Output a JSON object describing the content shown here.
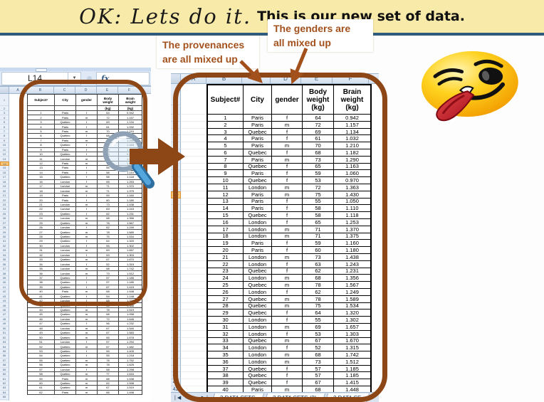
{
  "title": {
    "handwritten": "OK: Lets do it.",
    "typed": "This is our new set of data."
  },
  "callouts": {
    "provenances": [
      "The provenances",
      "are all mixed up"
    ],
    "genders": [
      "The genders are",
      "all mixed up"
    ]
  },
  "colors": {
    "title_band": "#F8EAA9",
    "divider_line": "#2E5B7D",
    "accent_brown": "#8D4716",
    "callout_text": "#A3511C",
    "row_highlight": "#FAC572",
    "header_strip": "#DCE6F1",
    "tab_bar": "#D9E2EF"
  },
  "excel": {
    "name_box": "L14",
    "fx_label": "fx",
    "selected_sheet_row": 14,
    "columns": [
      "A",
      "B",
      "C",
      "D",
      "E",
      "F"
    ],
    "headers": {
      "subject": "Subject#",
      "city": "City",
      "gender": "gender",
      "body": [
        "Body",
        "weight",
        "(kg)"
      ],
      "brain": [
        "Brain",
        "weight",
        "(kg)"
      ]
    },
    "rows": [
      [
        "1",
        "Paris",
        "f",
        "64",
        "0.942"
      ],
      [
        "2",
        "Paris",
        "m",
        "72",
        "1.157"
      ],
      [
        "3",
        "Quebec",
        "f",
        "69",
        "1.134"
      ],
      [
        "4",
        "Paris",
        "f",
        "61",
        "1.032"
      ],
      [
        "5",
        "Paris",
        "m",
        "70",
        "1.210"
      ],
      [
        "6",
        "Quebec",
        "f",
        "68",
        "1.182"
      ],
      [
        "7",
        "Paris",
        "m",
        "73",
        "1.290"
      ],
      [
        "8",
        "Quebec",
        "f",
        "65",
        "1.163"
      ],
      [
        "9",
        "Paris",
        "f",
        "59",
        "1.060"
      ],
      [
        "10",
        "Quebec",
        "f",
        "53",
        "0.970"
      ],
      [
        "11",
        "London",
        "m",
        "72",
        "1.363"
      ],
      [
        "12",
        "Paris",
        "m",
        "75",
        "1.430"
      ],
      [
        "13",
        "Paris",
        "f",
        "55",
        "1.050"
      ],
      [
        "14",
        "Paris",
        "f",
        "58",
        "1.110"
      ],
      [
        "15",
        "Quebec",
        "f",
        "58",
        "1.118"
      ],
      [
        "16",
        "London",
        "f",
        "65",
        "1.253"
      ],
      [
        "17",
        "London",
        "m",
        "71",
        "1.370"
      ],
      [
        "18",
        "London",
        "m",
        "71",
        "1.375"
      ],
      [
        "19",
        "Paris",
        "f",
        "59",
        "1.160"
      ],
      [
        "20",
        "Paris",
        "f",
        "60",
        "1.180"
      ],
      [
        "21",
        "London",
        "m",
        "73",
        "1.438"
      ],
      [
        "22",
        "London",
        "f",
        "63",
        "1.243"
      ],
      [
        "23",
        "Quebec",
        "f",
        "62",
        "1.231"
      ],
      [
        "24",
        "London",
        "m",
        "68",
        "1.356"
      ],
      [
        "25",
        "Quebec",
        "m",
        "78",
        "1.567"
      ],
      [
        "26",
        "London",
        "f",
        "62",
        "1.249"
      ],
      [
        "27",
        "Quebec",
        "m",
        "78",
        "1.589"
      ],
      [
        "28",
        "Quebec",
        "m",
        "75",
        "1.534"
      ],
      [
        "29",
        "Quebec",
        "f",
        "64",
        "1.320"
      ],
      [
        "30",
        "London",
        "f",
        "55",
        "1.302"
      ],
      [
        "31",
        "London",
        "m",
        "69",
        "1.657"
      ],
      [
        "32",
        "London",
        "f",
        "53",
        "1.303"
      ],
      [
        "33",
        "Quebec",
        "m",
        "67",
        "1.670"
      ],
      [
        "34",
        "London",
        "f",
        "52",
        "1.315"
      ],
      [
        "35",
        "London",
        "m",
        "68",
        "1.742"
      ],
      [
        "36",
        "London",
        "m",
        "73",
        "1.512"
      ],
      [
        "37",
        "Quebec",
        "f",
        "57",
        "1.185"
      ],
      [
        "38",
        "Quebec",
        "f",
        "57",
        "1.185"
      ],
      [
        "39",
        "Quebec",
        "f",
        "67",
        "1.415"
      ],
      [
        "40",
        "Paris",
        "m",
        "68",
        "1.448"
      ]
    ],
    "mini_extra_rows": [
      [
        "41",
        "Quebec",
        "f",
        "54",
        "1.148"
      ],
      [
        "42",
        "London",
        "f",
        "68",
        "1.378"
      ],
      [
        "43",
        "Quebec",
        "f",
        "65",
        "1.388"
      ],
      [
        "44",
        "Quebec",
        "m",
        "78",
        "1.519"
      ],
      [
        "45",
        "Quebec",
        "m",
        "68",
        "1.058"
      ],
      [
        "46",
        "London",
        "m",
        "72",
        "1.646"
      ],
      [
        "47",
        "Quebec",
        "f",
        "56",
        "1.232"
      ],
      [
        "48",
        "London",
        "m",
        "67",
        "1.540"
      ],
      [
        "49",
        "Quebec",
        "m",
        "67",
        "1.583"
      ],
      [
        "50",
        "Quebec",
        "m",
        "65",
        "1.678"
      ],
      [
        "51",
        "London",
        "f",
        "57",
        "1.294"
      ],
      [
        "52",
        "Quebec",
        "m",
        "67",
        "1.482"
      ],
      [
        "53",
        "Quebec",
        "f",
        "59",
        "1.405"
      ],
      [
        "54",
        "Quebec",
        "f",
        "55",
        "1.218"
      ],
      [
        "55",
        "Quebec",
        "m",
        "78",
        "1.752"
      ],
      [
        "56",
        "Quebec",
        "m",
        "78",
        "1.625"
      ],
      [
        "57",
        "London",
        "f",
        "58",
        "1.298"
      ],
      [
        "58",
        "Quebec",
        "m",
        "77",
        "1.616"
      ],
      [
        "59",
        "Paris",
        "m",
        "68",
        "1.538"
      ],
      [
        "60",
        "Quebec",
        "m",
        "62",
        "1.598"
      ],
      [
        "61",
        "Quebec",
        "m",
        "67",
        "1.519"
      ],
      [
        "62",
        "Paris",
        "m",
        "66",
        "1.498"
      ]
    ],
    "sheet_tabs": [
      "3 DATA SETS",
      "3 DATA SETS (2)",
      "3 DATA SE"
    ],
    "tab_nav_icons": [
      "|◀",
      "◀",
      "▶",
      "▶|"
    ],
    "dropdown_icon": "▼"
  }
}
